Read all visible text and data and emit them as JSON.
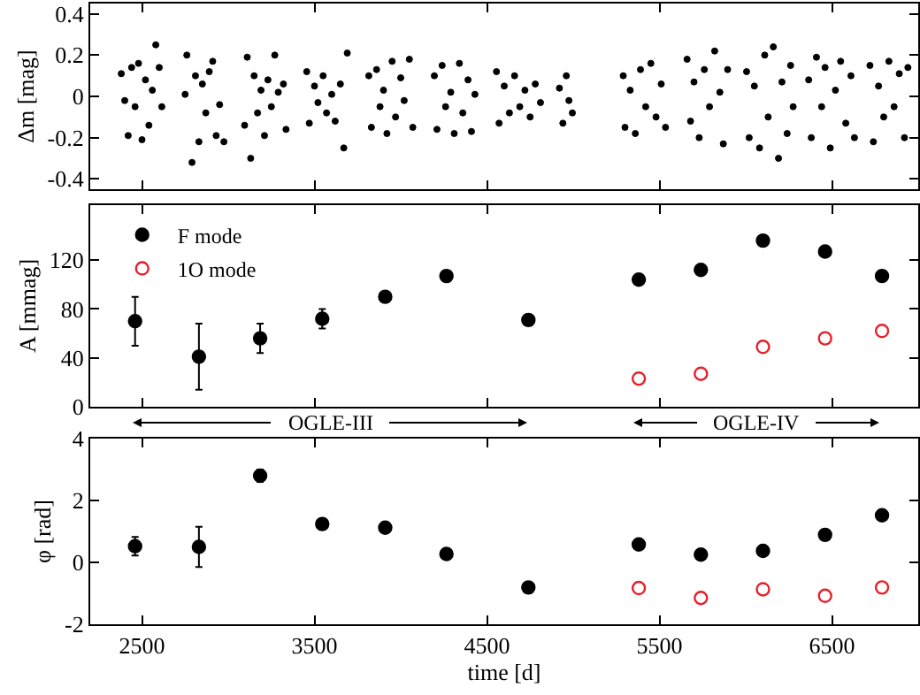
{
  "chart_data": [
    {
      "type": "scatter",
      "ylabel": "Δm [mag]",
      "xlim": [
        2200,
        7000
      ],
      "xticks": [
        2500,
        3500,
        4500,
        5500,
        6500
      ],
      "ylim": [
        -0.45,
        0.45
      ],
      "yticks": [
        -0.4,
        -0.2,
        0,
        0.2,
        0.4
      ],
      "tick_labels": "y",
      "marker": "circle",
      "legend": false,
      "series": [
        {
          "color": "#000000",
          "x": [
            2380,
            2400,
            2420,
            2440,
            2460,
            2480,
            2500,
            2520,
            2540,
            2560,
            2580,
            2600,
            2615,
            2750,
            2760,
            2790,
            2810,
            2830,
            2850,
            2870,
            2890,
            2910,
            2930,
            2950,
            2975,
            3095,
            3110,
            3130,
            3150,
            3170,
            3190,
            3210,
            3230,
            3250,
            3270,
            3290,
            3320,
            3335,
            3455,
            3470,
            3500,
            3520,
            3550,
            3570,
            3600,
            3620,
            3650,
            3670,
            3690,
            3815,
            3830,
            3860,
            3880,
            3900,
            3920,
            3950,
            3970,
            4000,
            4020,
            4050,
            4070,
            4195,
            4210,
            4240,
            4260,
            4290,
            4310,
            4340,
            4360,
            4390,
            4410,
            4430,
            4555,
            4570,
            4600,
            4630,
            4660,
            4690,
            4720,
            4750,
            4780,
            4810,
            4920,
            4940,
            4960,
            4975,
            4995,
            5290,
            5300,
            5330,
            5360,
            5390,
            5420,
            5450,
            5480,
            5510,
            5535,
            5660,
            5680,
            5700,
            5730,
            5760,
            5790,
            5820,
            5850,
            5870,
            5895,
            6005,
            6020,
            6050,
            6080,
            6110,
            6130,
            6160,
            6190,
            6210,
            6240,
            6260,
            6275,
            6365,
            6380,
            6410,
            6440,
            6460,
            6490,
            6520,
            6550,
            6580,
            6610,
            6630,
            6720,
            6740,
            6770,
            6800,
            6830,
            6860,
            6890,
            6920,
            6940
          ],
          "values": [
            0.11,
            -0.02,
            -0.19,
            0.14,
            -0.05,
            0.16,
            -0.21,
            0.08,
            -0.14,
            0.03,
            0.25,
            0.14,
            -0.05,
            0.01,
            0.2,
            -0.32,
            0.1,
            -0.22,
            0.06,
            -0.08,
            0.12,
            0.17,
            -0.19,
            -0.04,
            -0.22,
            -0.14,
            0.19,
            -0.3,
            0.1,
            -0.08,
            0.03,
            -0.19,
            0.08,
            -0.05,
            0.2,
            0.02,
            0.06,
            -0.16,
            0.12,
            -0.13,
            0.05,
            -0.03,
            0.1,
            -0.08,
            0.01,
            -0.12,
            0.06,
            -0.25,
            0.21,
            0.1,
            -0.15,
            0.13,
            -0.05,
            0.03,
            -0.18,
            0.17,
            -0.1,
            0.09,
            -0.02,
            0.18,
            -0.15,
            0.1,
            -0.16,
            0.15,
            -0.05,
            0.02,
            -0.18,
            0.16,
            -0.08,
            0.08,
            -0.17,
            0.01,
            0.12,
            -0.13,
            0.05,
            -0.08,
            0.1,
            -0.05,
            0.03,
            -0.1,
            0.06,
            -0.03,
            0.04,
            -0.13,
            0.1,
            -0.02,
            -0.08,
            0.1,
            -0.15,
            0.03,
            -0.18,
            0.13,
            -0.05,
            0.16,
            -0.1,
            0.06,
            -0.15,
            0.18,
            -0.12,
            0.07,
            -0.2,
            0.13,
            -0.05,
            0.22,
            0.02,
            -0.23,
            0.13,
            0.12,
            -0.2,
            0.05,
            -0.25,
            0.2,
            -0.1,
            0.24,
            -0.3,
            0.07,
            -0.18,
            0.15,
            -0.05,
            0.08,
            -0.2,
            0.19,
            -0.05,
            0.14,
            -0.25,
            0.03,
            0.17,
            -0.13,
            0.1,
            -0.2,
            0.15,
            -0.22,
            0.05,
            -0.1,
            0.17,
            -0.05,
            0.11,
            -0.2,
            0.14
          ]
        }
      ]
    },
    {
      "type": "scatter",
      "ylabel": "A [mmag]",
      "xlim": [
        2200,
        7000
      ],
      "xticks": [
        2500,
        3500,
        4500,
        5500,
        6500
      ],
      "ylim": [
        0,
        165
      ],
      "yticks": [
        0,
        40,
        80,
        120
      ],
      "tick_labels": "y",
      "marker": "circle",
      "legend": "top left",
      "annotations": [
        "OGLE-III",
        "OGLE-IV"
      ],
      "series": [
        {
          "name": "F mode",
          "color": "#000000",
          "x": [
            2460,
            2830,
            3185,
            3545,
            3910,
            4265,
            4740,
            5380,
            5740,
            6100,
            6460,
            6790
          ],
          "values": [
            70,
            41,
            56,
            72,
            90,
            107,
            71,
            104,
            112,
            136,
            127,
            107
          ],
          "errors": [
            20,
            27,
            12,
            8,
            null,
            null,
            4,
            null,
            null,
            null,
            null,
            null
          ]
        },
        {
          "name": "1O mode",
          "color": "#e8202a",
          "x": [
            5380,
            5740,
            6100,
            6460,
            6790
          ],
          "values": [
            23,
            27,
            49,
            56,
            62
          ]
        }
      ]
    },
    {
      "type": "scatter",
      "xlabel": "time [d]",
      "ylabel": "φ [rad]",
      "xlim": [
        2200,
        7000
      ],
      "xticks": [
        2500,
        3500,
        4500,
        5500,
        6500
      ],
      "ylim": [
        -2,
        4
      ],
      "yticks": [
        -2,
        0,
        2,
        4
      ],
      "marker": "circle",
      "legend": false,
      "series": [
        {
          "color": "#000000",
          "x": [
            2460,
            2830,
            3185,
            3545,
            3910,
            4265,
            4740,
            5380,
            5740,
            6100,
            6460,
            6790
          ],
          "values": [
            0.52,
            0.5,
            2.8,
            1.24,
            1.12,
            0.27,
            -0.81,
            0.58,
            0.25,
            0.37,
            0.89,
            1.52
          ],
          "errors": [
            0.3,
            0.65,
            0.2,
            null,
            null,
            null,
            null,
            null,
            null,
            null,
            null,
            null
          ]
        },
        {
          "color": "#e8202a",
          "x": [
            5380,
            5740,
            6100,
            6460,
            6790
          ],
          "values": [
            -0.83,
            -1.15,
            -0.87,
            -1.08,
            -0.81
          ]
        }
      ]
    }
  ]
}
